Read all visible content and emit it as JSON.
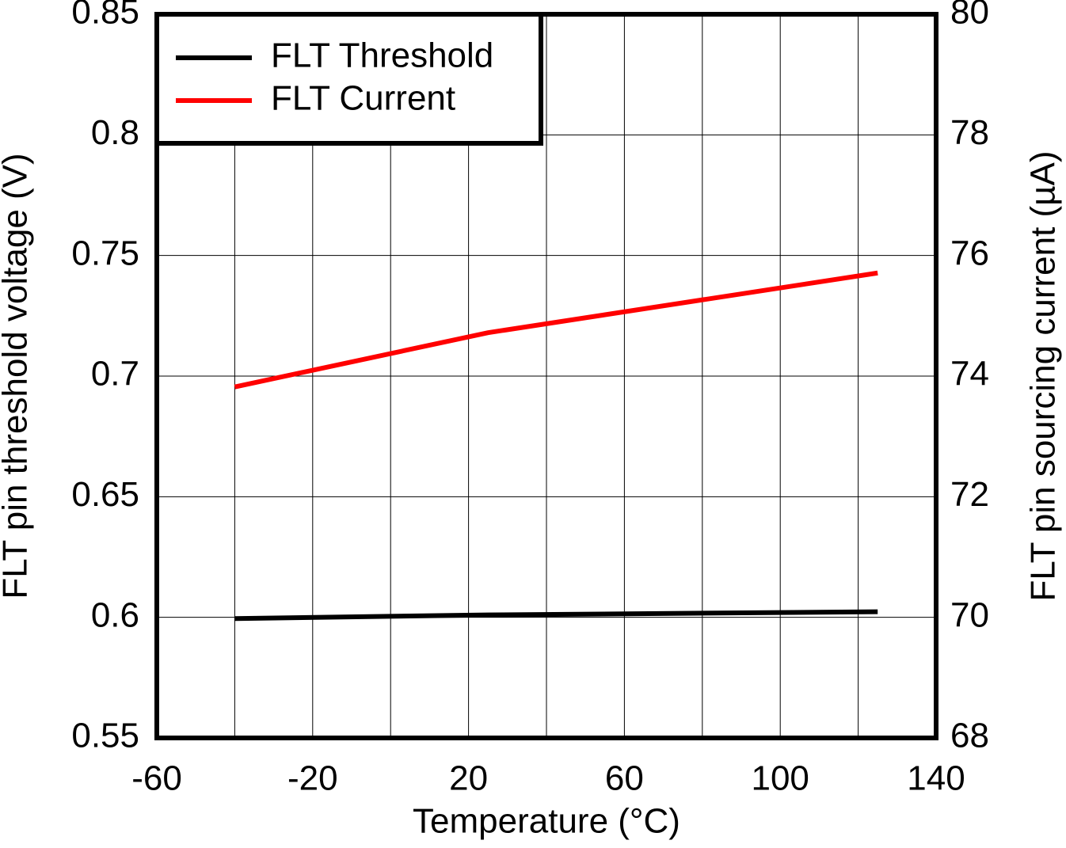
{
  "chart_data": {
    "type": "line",
    "x_label": "Temperature (°C)",
    "y_label": "FLT pin threshold voltage (V)",
    "y2_label": "FLT pin sourcing current (µA)",
    "x": [
      -40,
      25,
      125
    ],
    "series": [
      {
        "name": "FLT Threshold",
        "color": "#000000",
        "values": [
          0.5995,
          0.601,
          0.6023
        ]
      },
      {
        "name": "FLT Current",
        "color": "#ff0000",
        "values": [
          73.82,
          74.72,
          75.71
        ],
        "axis": "y2"
      }
    ],
    "xlim": [
      -60,
      140
    ],
    "xticks": [
      -60,
      -20,
      20,
      60,
      100,
      140
    ],
    "xminor": [
      -40,
      0,
      40,
      80,
      120
    ],
    "ylim": [
      0.55,
      0.85
    ],
    "yticks": [
      0.55,
      0.6,
      0.65,
      0.7,
      0.75,
      0.8,
      0.85
    ],
    "y2lim": [
      68,
      80
    ],
    "y2ticks": [
      68,
      70,
      72,
      74,
      76,
      78,
      80
    ],
    "grid": true,
    "legend": "upper left"
  }
}
